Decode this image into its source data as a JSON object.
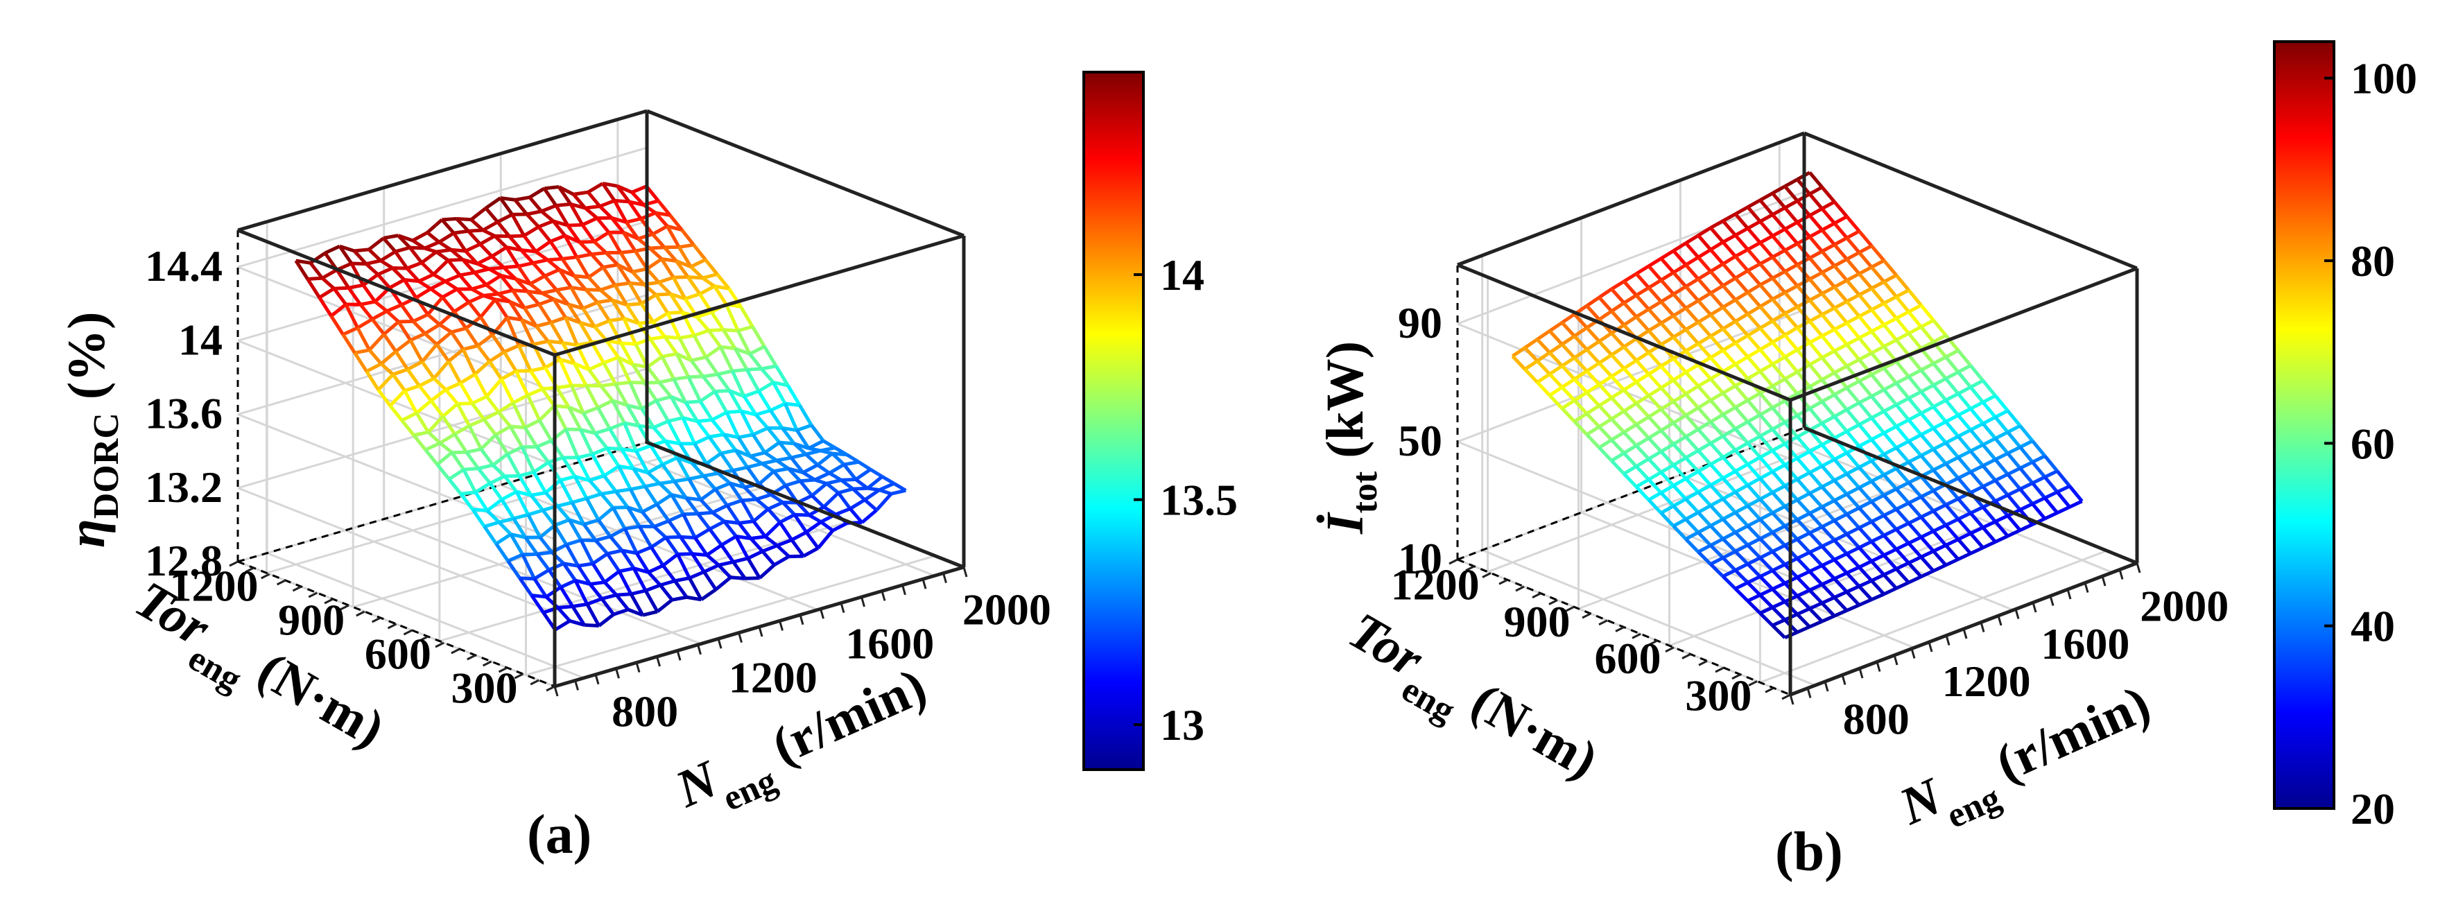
{
  "chart_data": [
    {
      "panel_label": "(a)",
      "type": "surface3d",
      "x": {
        "label": "N",
        "label_sub": "eng",
        "label_unit": "(r/min)",
        "ticks": [
          800,
          1200,
          1600,
          2000
        ],
        "range": [
          700,
          2100
        ]
      },
      "y": {
        "label": "Tor",
        "label_sub": "eng",
        "label_unit": "(N·m)",
        "ticks": [
          300,
          600,
          900,
          1200
        ],
        "range": [
          200,
          1300
        ]
      },
      "z": {
        "label": "η",
        "label_sub": "DORC",
        "label_unit": "(%)",
        "ticks": [
          12.8,
          13.2,
          13.6,
          14,
          14.4
        ],
        "range": [
          12.8,
          14.6
        ]
      },
      "colorbar": {
        "ticks": [
          13,
          13.5,
          14
        ],
        "range": [
          12.9,
          14.45
        ]
      },
      "colormap": [
        "#00008f",
        "#0000ff",
        "#0080ff",
        "#00ffff",
        "#80ff80",
        "#ffff00",
        "#ff8000",
        "#ff0000",
        "#800000"
      ],
      "surface_points": [
        {
          "n": 800,
          "tor": 1200,
          "z": 14.45
        },
        {
          "n": 800,
          "tor": 900,
          "z": 13.9
        },
        {
          "n": 800,
          "tor": 600,
          "z": 13.5
        },
        {
          "n": 800,
          "tor": 300,
          "z": 13.0
        },
        {
          "n": 1200,
          "tor": 1200,
          "z": 14.4
        },
        {
          "n": 1200,
          "tor": 900,
          "z": 14.2
        },
        {
          "n": 1200,
          "tor": 600,
          "z": 13.5
        },
        {
          "n": 1200,
          "tor": 300,
          "z": 12.95
        },
        {
          "n": 1600,
          "tor": 1200,
          "z": 14.45
        },
        {
          "n": 1600,
          "tor": 900,
          "z": 14.0
        },
        {
          "n": 1600,
          "tor": 600,
          "z": 13.4
        },
        {
          "n": 1600,
          "tor": 300,
          "z": 13.0
        },
        {
          "n": 2000,
          "tor": 1200,
          "z": 14.3
        },
        {
          "n": 2000,
          "tor": 900,
          "z": 13.9
        },
        {
          "n": 2000,
          "tor": 600,
          "z": 13.3
        },
        {
          "n": 2000,
          "tor": 300,
          "z": 13.2
        }
      ]
    },
    {
      "panel_label": "(b)",
      "type": "surface3d",
      "x": {
        "label": "N",
        "label_sub": "eng",
        "label_unit": "(r/min)",
        "ticks": [
          800,
          1200,
          1600,
          2000
        ],
        "range": [
          700,
          2100
        ]
      },
      "y": {
        "label": "Tor",
        "label_sub": "eng",
        "label_unit": "(N·m)",
        "ticks": [
          300,
          600,
          900,
          1200
        ],
        "range": [
          200,
          1300
        ]
      },
      "z": {
        "label": "İ",
        "label_sub": "tot",
        "label_unit": "(kW)",
        "ticks": [
          10,
          50,
          90
        ],
        "range": [
          10,
          110
        ]
      },
      "colorbar": {
        "ticks": [
          20,
          40,
          60,
          80,
          100
        ],
        "range": [
          20,
          104
        ]
      },
      "colormap": [
        "#00008f",
        "#0000ff",
        "#0080ff",
        "#00ffff",
        "#80ff80",
        "#ffff00",
        "#ff8000",
        "#ff0000",
        "#800000"
      ],
      "surface_points": [
        {
          "n": 800,
          "tor": 1200,
          "z": 80
        },
        {
          "n": 800,
          "tor": 900,
          "z": 60
        },
        {
          "n": 800,
          "tor": 600,
          "z": 40
        },
        {
          "n": 800,
          "tor": 300,
          "z": 22
        },
        {
          "n": 1200,
          "tor": 1200,
          "z": 90
        },
        {
          "n": 1200,
          "tor": 900,
          "z": 68
        },
        {
          "n": 1200,
          "tor": 600,
          "z": 45
        },
        {
          "n": 1200,
          "tor": 300,
          "z": 24
        },
        {
          "n": 1600,
          "tor": 1200,
          "z": 98
        },
        {
          "n": 1600,
          "tor": 900,
          "z": 75
        },
        {
          "n": 1600,
          "tor": 600,
          "z": 50
        },
        {
          "n": 1600,
          "tor": 300,
          "z": 27
        },
        {
          "n": 2000,
          "tor": 1200,
          "z": 104
        },
        {
          "n": 2000,
          "tor": 900,
          "z": 80
        },
        {
          "n": 2000,
          "tor": 600,
          "z": 55
        },
        {
          "n": 2000,
          "tor": 300,
          "z": 30
        }
      ]
    }
  ]
}
